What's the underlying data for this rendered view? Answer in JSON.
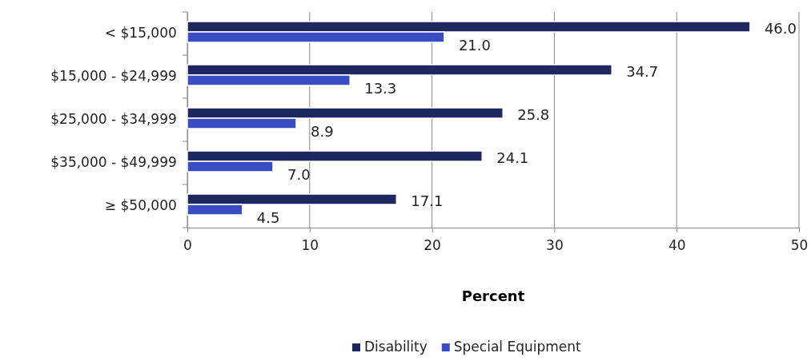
{
  "chart_data": {
    "type": "bar",
    "orientation": "horizontal",
    "xlabel": "Percent",
    "categories": [
      "< $15,000",
      "$15,000 - $24,999",
      "$25,000 - $34,999",
      "$35,000 - $49,999",
      "≥ $50,000"
    ],
    "series": [
      {
        "name": "Disability",
        "color": "#1f2760",
        "values": [
          46.0,
          34.7,
          25.8,
          24.1,
          17.1
        ],
        "value_labels": [
          "46.0",
          "34.7",
          "25.8",
          "24.1",
          "17.1"
        ]
      },
      {
        "name": "Special Equipment",
        "color": "#3a4cc4",
        "values": [
          21.0,
          13.3,
          8.9,
          7.0,
          4.5
        ],
        "value_labels": [
          "21.0",
          "13.3",
          "8.9",
          "7.0",
          "4.5"
        ]
      }
    ],
    "xlim": [
      0,
      50
    ],
    "xticks": [
      0,
      10,
      20,
      30,
      40,
      50
    ],
    "grid": "x",
    "legend": "bottom"
  }
}
